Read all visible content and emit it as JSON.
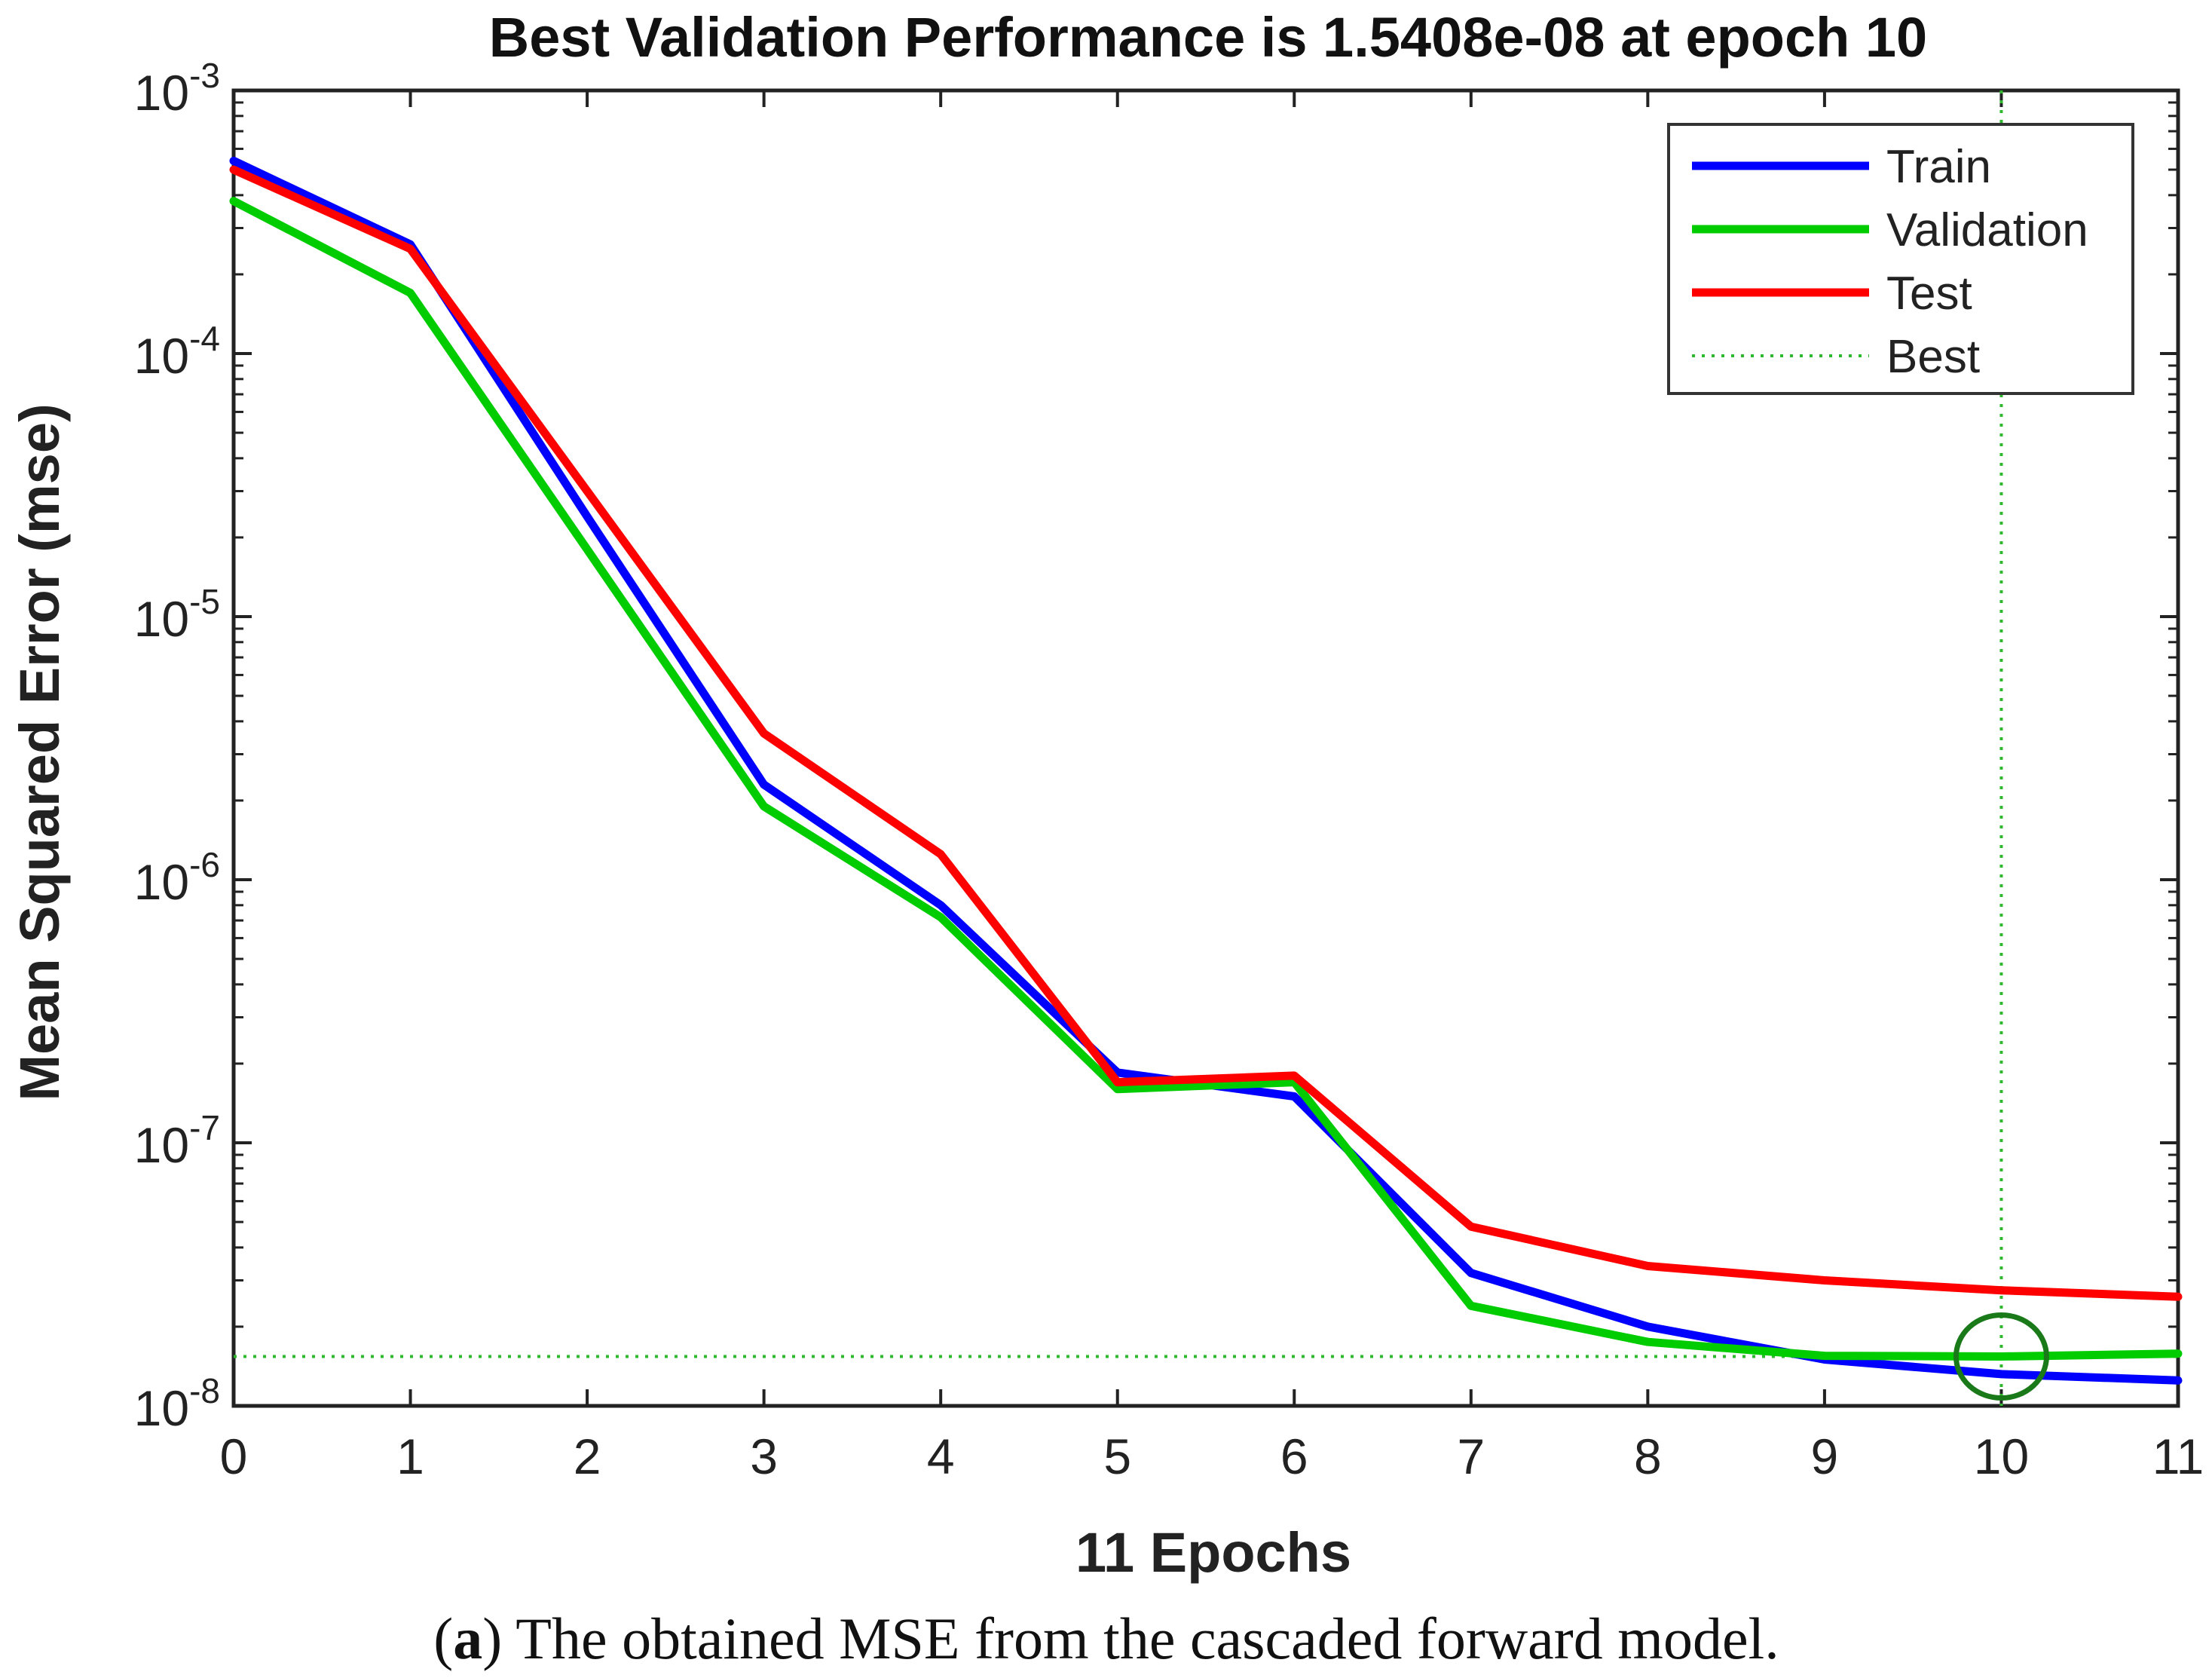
{
  "chart_data": {
    "type": "line",
    "title": "Best Validation Performance is 1.5408e-08 at epoch 10",
    "xlabel": "11 Epochs",
    "ylabel": "Mean Squared Error  (mse)",
    "xlim": [
      0,
      11
    ],
    "ylim": [
      1e-08,
      0.001
    ],
    "yscale": "log",
    "grid": false,
    "legend_position": "top-right",
    "x": [
      0,
      1,
      2,
      3,
      4,
      5,
      6,
      7,
      8,
      9,
      10,
      11
    ],
    "xticks": [
      "0",
      "1",
      "2",
      "3",
      "4",
      "5",
      "6",
      "7",
      "8",
      "9",
      "10",
      "11"
    ],
    "yticks": [
      {
        "value": 0.001,
        "base": "10",
        "exp": "-3"
      },
      {
        "value": 0.0001,
        "base": "10",
        "exp": "-4"
      },
      {
        "value": 1e-05,
        "base": "10",
        "exp": "-5"
      },
      {
        "value": 1e-06,
        "base": "10",
        "exp": "-6"
      },
      {
        "value": 1e-07,
        "base": "10",
        "exp": "-7"
      },
      {
        "value": 1e-08,
        "base": "10",
        "exp": "-8"
      }
    ],
    "series": [
      {
        "name": "Train",
        "color": "#0000ff",
        "values": [
          0.00054,
          0.00026,
          2.4e-05,
          2.3e-06,
          8e-07,
          1.85e-07,
          1.5e-07,
          3.2e-08,
          2e-08,
          1.5e-08,
          1.32e-08,
          1.25e-08
        ]
      },
      {
        "name": "Validation",
        "color": "#00cc00",
        "values": [
          0.00038,
          0.00017,
          1.8e-05,
          1.9e-06,
          7.2e-07,
          1.6e-07,
          1.7e-07,
          2.4e-08,
          1.75e-08,
          1.55e-08,
          1.5408e-08,
          1.58e-08
        ]
      },
      {
        "name": "Test",
        "color": "#ff0000",
        "values": [
          0.0005,
          0.00025,
          3e-05,
          3.6e-06,
          1.25e-06,
          1.7e-07,
          1.8e-07,
          4.8e-08,
          3.4e-08,
          3e-08,
          2.75e-08,
          2.6e-08
        ]
      }
    ],
    "best": {
      "name": "Best",
      "epoch": 10,
      "value": 1.5408e-08,
      "color": "#2eb82e",
      "marker_color": "#1a7a1a"
    }
  },
  "caption": {
    "prefix": "(",
    "letter": "a",
    "text": ") The obtained MSE from the cascaded forward model."
  }
}
